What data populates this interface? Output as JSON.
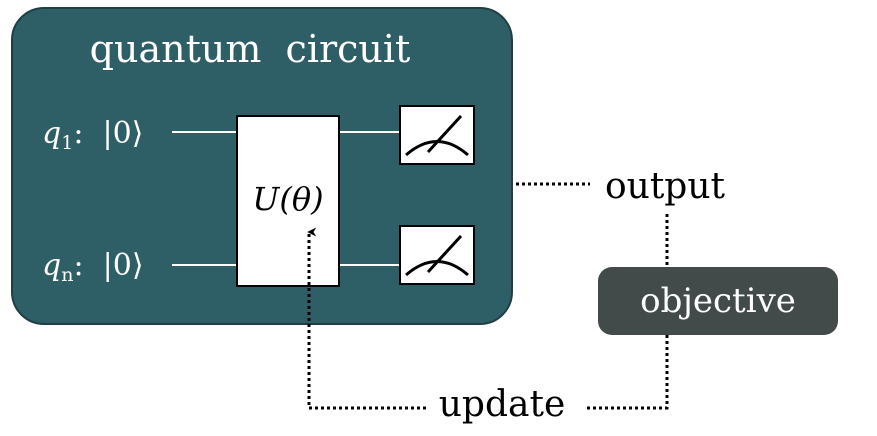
{
  "circuit": {
    "title": "quantum  circuit",
    "background_color": "#2f5f66",
    "qubits": [
      {
        "symbol": "q",
        "subscript": "1",
        "state": ":  |0⟩"
      },
      {
        "symbol": "q",
        "subscript": "n",
        "state": ":  |0⟩"
      }
    ],
    "gate": {
      "label": "U(θ)"
    },
    "measurement_icon": "meter-icon"
  },
  "output": {
    "label": "output"
  },
  "objective": {
    "label": "objective",
    "background_color": "#424a4a"
  },
  "update": {
    "label": "update"
  }
}
